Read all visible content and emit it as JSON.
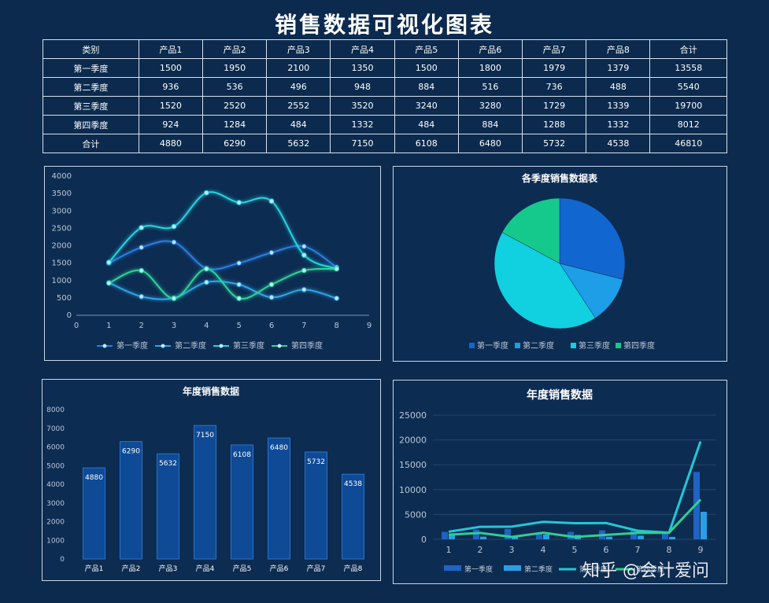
{
  "title": "销售数据可视化图表",
  "table": {
    "header": [
      "类别",
      "产品1",
      "产品2",
      "产品3",
      "产品4",
      "产品5",
      "产品6",
      "产品7",
      "产品8",
      "合计"
    ],
    "rows": [
      [
        "第一季度",
        "1500",
        "1950",
        "2100",
        "1350",
        "1500",
        "1800",
        "1979",
        "1379",
        "13558"
      ],
      [
        "第二季度",
        "936",
        "536",
        "496",
        "948",
        "884",
        "516",
        "736",
        "488",
        "5540"
      ],
      [
        "第三季度",
        "1520",
        "2520",
        "2552",
        "3520",
        "3240",
        "3280",
        "1729",
        "1339",
        "19700"
      ],
      [
        "第四季度",
        "924",
        "1284",
        "484",
        "1332",
        "484",
        "884",
        "1288",
        "1332",
        "8012"
      ],
      [
        "合计",
        "4880",
        "6290",
        "5632",
        "7150",
        "6108",
        "6480",
        "5732",
        "4538",
        "46810"
      ]
    ]
  },
  "watermark": "知乎 @会计爱问",
  "colors": {
    "q1": "#2a7fe0",
    "q2": "#2ea6e8",
    "q3": "#27d3e0",
    "q4": "#2fd39a"
  },
  "chart_data": [
    {
      "type": "line",
      "x": [
        1,
        2,
        3,
        4,
        5,
        6,
        7,
        8
      ],
      "xlim": [
        0,
        9
      ],
      "ylim": [
        0,
        4000
      ],
      "xticks": [
        "0",
        "1",
        "2",
        "3",
        "4",
        "5",
        "6",
        "7",
        "8",
        "9"
      ],
      "yticks": [
        "0",
        "500",
        "1000",
        "1500",
        "2000",
        "2500",
        "3000",
        "3500",
        "4000"
      ],
      "series": [
        {
          "name": "第一季度",
          "values": [
            1500,
            1950,
            2100,
            1350,
            1500,
            1800,
            1979,
            1379
          ]
        },
        {
          "name": "第二季度",
          "values": [
            936,
            536,
            496,
            948,
            884,
            516,
            736,
            488
          ]
        },
        {
          "name": "第三季度",
          "values": [
            1520,
            2520,
            2552,
            3520,
            3240,
            3280,
            1729,
            1339
          ]
        },
        {
          "name": "第四季度",
          "values": [
            924,
            1284,
            484,
            1332,
            484,
            884,
            1288,
            1332
          ]
        }
      ],
      "legend": "bottom"
    },
    {
      "type": "pie",
      "title": "各季度销售数据表",
      "labels": [
        "第一季度",
        "第二季度",
        "第三季度",
        "第四季度"
      ],
      "values": [
        13558,
        5540,
        19700,
        8012
      ],
      "legend": "bottom"
    },
    {
      "type": "bar",
      "title": "年度销售数据",
      "categories": [
        "产品1",
        "产品2",
        "产品3",
        "产品4",
        "产品5",
        "产品6",
        "产品7",
        "产品8"
      ],
      "values": [
        4880,
        6290,
        5632,
        7150,
        6108,
        6480,
        5732,
        4538
      ],
      "ylim": [
        0,
        8000
      ],
      "yticks": [
        "0",
        "1000",
        "2000",
        "3000",
        "4000",
        "5000",
        "6000",
        "7000",
        "8000"
      ]
    },
    {
      "type": "bar",
      "title": "年度销售数据",
      "categories": [
        "1",
        "2",
        "3",
        "4",
        "5",
        "6",
        "7",
        "8",
        "9"
      ],
      "ylim": [
        0,
        25000
      ],
      "yticks": [
        "0",
        "5000",
        "10000",
        "15000",
        "20000",
        "25000"
      ],
      "series": [
        {
          "name": "第一季度",
          "kind": "bar",
          "values": [
            1500,
            1950,
            2100,
            1350,
            1500,
            1800,
            1979,
            1379,
            13558
          ]
        },
        {
          "name": "第二季度",
          "kind": "bar",
          "values": [
            936,
            536,
            496,
            948,
            884,
            516,
            736,
            488,
            5540
          ]
        },
        {
          "name": "第三季度",
          "kind": "line",
          "values": [
            1520,
            2520,
            2552,
            3520,
            3240,
            3280,
            1729,
            1339,
            19700
          ]
        },
        {
          "name": "第四季度",
          "kind": "line",
          "values": [
            924,
            1284,
            484,
            1332,
            484,
            884,
            1288,
            1332,
            8012
          ]
        }
      ],
      "legend": "bottom"
    }
  ]
}
